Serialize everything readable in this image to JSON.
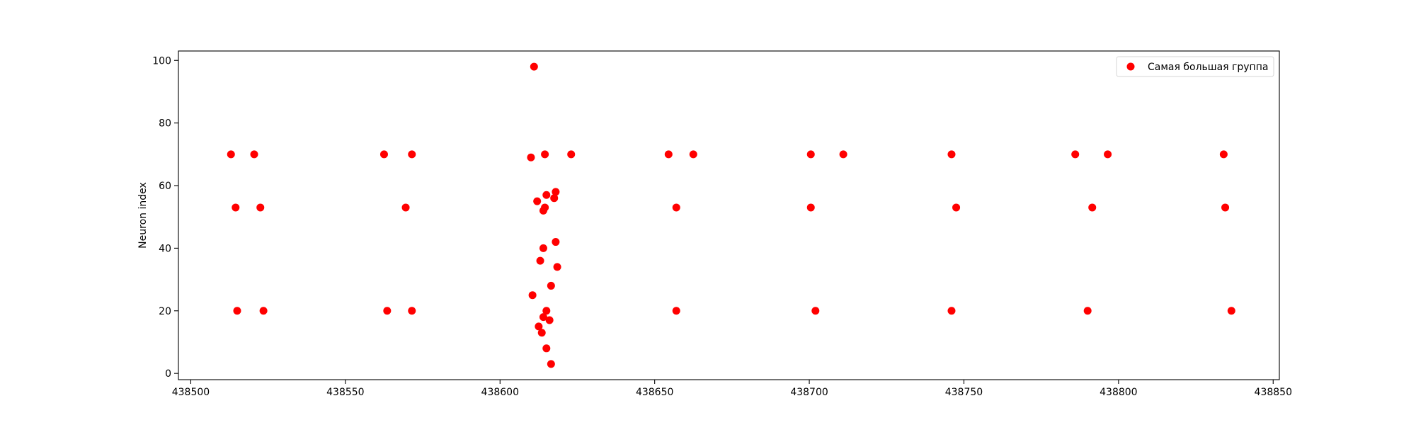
{
  "chart_data": {
    "type": "scatter",
    "title": "",
    "xlabel": "",
    "ylabel": "Neuron index",
    "xlim": [
      438496,
      438852
    ],
    "ylim": [
      -2,
      103
    ],
    "xticks": [
      438500,
      438550,
      438600,
      438650,
      438700,
      438750,
      438800,
      438850
    ],
    "yticks": [
      0,
      20,
      40,
      60,
      80,
      100
    ],
    "grid": false,
    "legend_position": "top-right",
    "series": [
      {
        "name": "Самая большая группа",
        "color": "#ff0000",
        "points": [
          [
            438513,
            70
          ],
          [
            438520.5,
            70
          ],
          [
            438514.5,
            53
          ],
          [
            438522.5,
            53
          ],
          [
            438515,
            20
          ],
          [
            438523.5,
            20
          ],
          [
            438562.5,
            70
          ],
          [
            438571.5,
            70
          ],
          [
            438569.5,
            53
          ],
          [
            438563.5,
            20
          ],
          [
            438571.5,
            20
          ],
          [
            438611,
            98
          ],
          [
            438610,
            69
          ],
          [
            438614.5,
            70
          ],
          [
            438623,
            70
          ],
          [
            438618,
            58
          ],
          [
            438615,
            57
          ],
          [
            438617.5,
            56
          ],
          [
            438612,
            55
          ],
          [
            438614.5,
            53
          ],
          [
            438614,
            52
          ],
          [
            438618,
            42
          ],
          [
            438614,
            40
          ],
          [
            438613,
            36
          ],
          [
            438618.5,
            34
          ],
          [
            438616.5,
            28
          ],
          [
            438610.5,
            25
          ],
          [
            438615,
            20
          ],
          [
            438614,
            18
          ],
          [
            438616,
            17
          ],
          [
            438612.5,
            15
          ],
          [
            438613.5,
            13
          ],
          [
            438615,
            8
          ],
          [
            438616.5,
            3
          ],
          [
            438654.5,
            70
          ],
          [
            438662.5,
            70
          ],
          [
            438657,
            53
          ],
          [
            438657,
            20
          ],
          [
            438700.5,
            70
          ],
          [
            438711,
            70
          ],
          [
            438700.5,
            53
          ],
          [
            438702,
            20
          ],
          [
            438746,
            70
          ],
          [
            438747.5,
            53
          ],
          [
            438746,
            20
          ],
          [
            438786,
            70
          ],
          [
            438796.5,
            70
          ],
          [
            438791.5,
            53
          ],
          [
            438790,
            20
          ],
          [
            438834,
            70
          ],
          [
            438834.5,
            53
          ],
          [
            438836.5,
            20
          ]
        ]
      }
    ]
  }
}
